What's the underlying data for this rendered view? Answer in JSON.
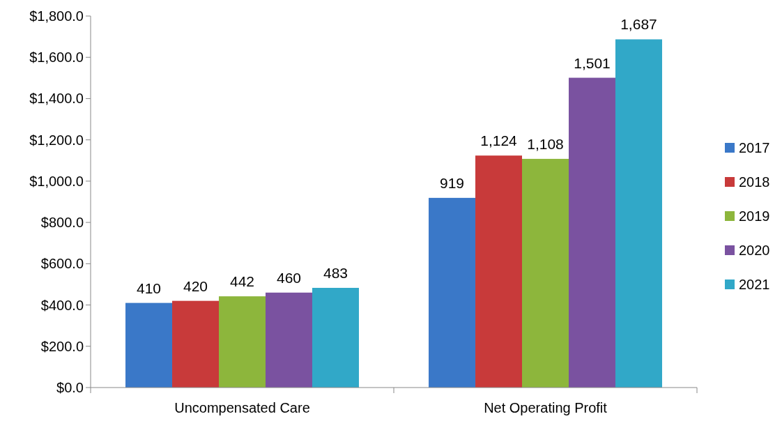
{
  "chart_data": {
    "type": "bar",
    "categories": [
      "Uncompensated Care",
      "Net Operating Profit"
    ],
    "series": [
      {
        "name": "2017",
        "color": "#3a78c8",
        "values": [
          410,
          919
        ],
        "value_labels": [
          "410",
          "919"
        ]
      },
      {
        "name": "2018",
        "color": "#c83a3a",
        "values": [
          420,
          1124
        ],
        "value_labels": [
          "420",
          "1,124"
        ]
      },
      {
        "name": "2019",
        "color": "#8db63c",
        "values": [
          442,
          1108
        ],
        "value_labels": [
          "442",
          "1,108"
        ]
      },
      {
        "name": "2020",
        "color": "#7a52a0",
        "values": [
          460,
          1501
        ],
        "value_labels": [
          "460",
          "1,501"
        ]
      },
      {
        "name": "2021",
        "color": "#31a8c8",
        "values": [
          483,
          1687
        ],
        "value_labels": [
          "483",
          "1,687"
        ]
      }
    ],
    "ylim": [
      0,
      1800
    ],
    "yticks": [
      {
        "value": 0,
        "label": "$0.0"
      },
      {
        "value": 200,
        "label": "$200.0"
      },
      {
        "value": 400,
        "label": "$400.0"
      },
      {
        "value": 600,
        "label": "$600.0"
      },
      {
        "value": 800,
        "label": "$800.0"
      },
      {
        "value": 1000,
        "label": "$1,000.0"
      },
      {
        "value": 1200,
        "label": "$1,200.0"
      },
      {
        "value": 1400,
        "label": "$1,400.0"
      },
      {
        "value": 1600,
        "label": "$1,600.0"
      },
      {
        "value": 1800,
        "label": "$1,800.0"
      }
    ],
    "grid": false,
    "legend": "right"
  }
}
